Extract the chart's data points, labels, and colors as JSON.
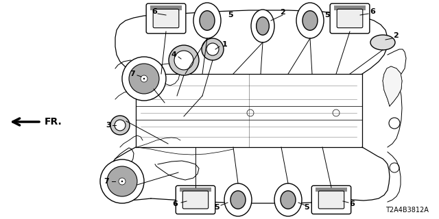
{
  "bg_color": "#ffffff",
  "diagram_code": "T2A4B3812A",
  "font_size_labels": 8,
  "font_size_code": 7,
  "lw_car": 0.9,
  "lw_part": 1.0,
  "lw_pointer": 0.7
}
